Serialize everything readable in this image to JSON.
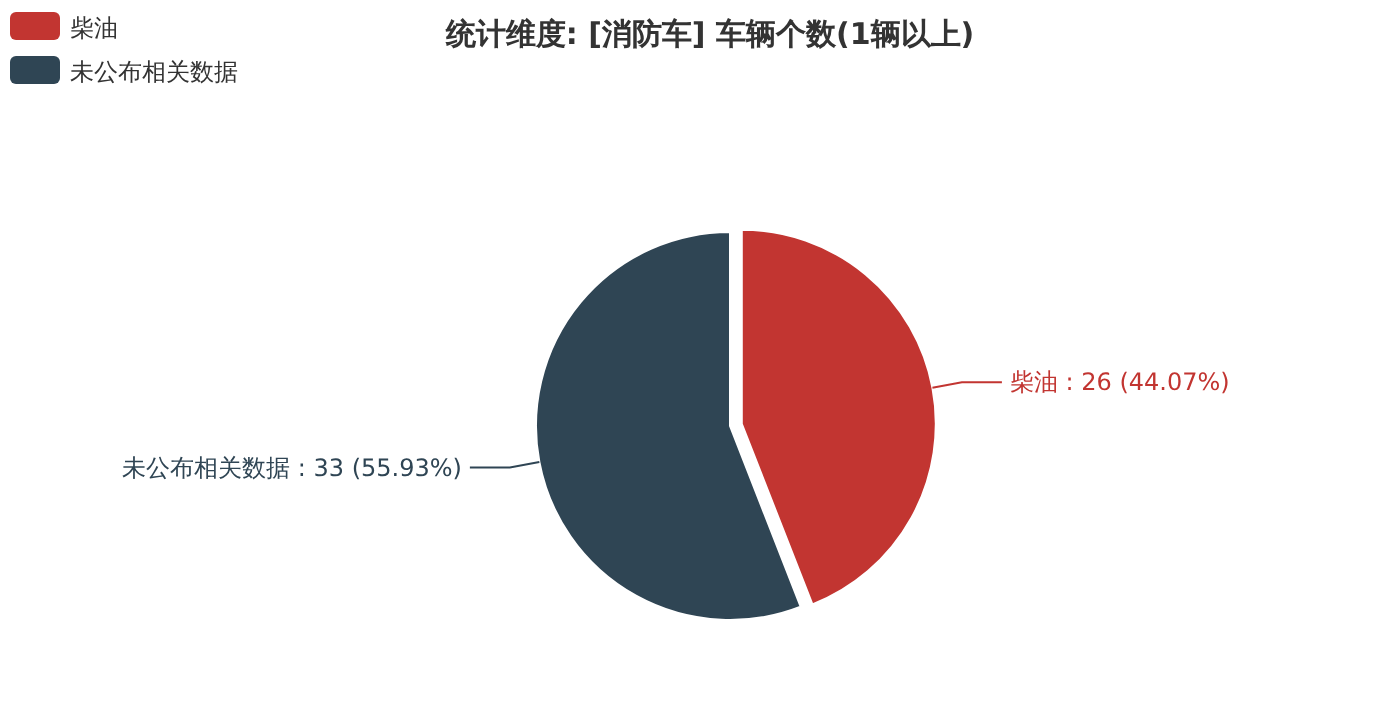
{
  "chart_data": {
    "type": "pie",
    "title": "统计维度: [消防车] 车辆个数(1辆以上)",
    "categories": [
      "柴油",
      "未公布相关数据"
    ],
    "values": [
      26,
      33
    ],
    "colors": [
      "#c23531",
      "#2f4554"
    ],
    "value_labels": [
      "柴油 : 26 (44.07%)",
      "未公布相关数据 : 33 (55.93%)"
    ],
    "legend": "top left"
  }
}
